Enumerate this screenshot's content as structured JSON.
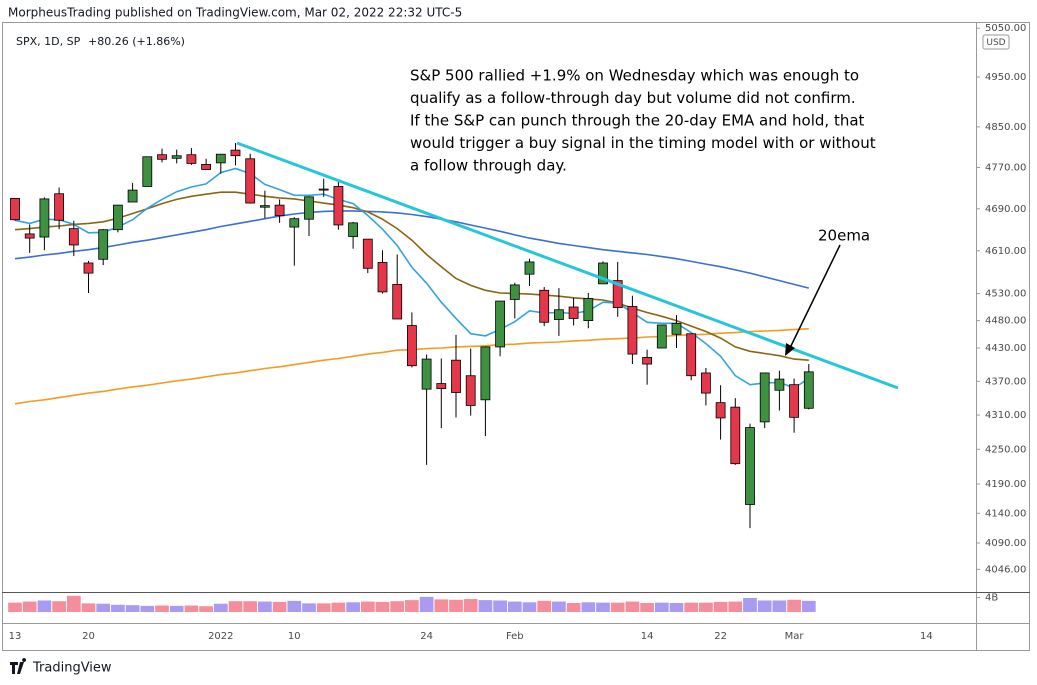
{
  "header": {
    "publisher": "MorpheusTrading published on TradingView.com, Mar 02, 2022 22:32 UTC-5",
    "symbol": "SPX, 1D, SP",
    "change": "+80.26 (+1.86%)"
  },
  "currency": "USD",
  "footer": "TradingView",
  "chart_data": {
    "type": "candlestick",
    "categories": [
      "13",
      null,
      null,
      null,
      null,
      "20",
      null,
      null,
      null,
      null,
      null,
      null,
      null,
      null,
      "2022",
      null,
      null,
      null,
      null,
      "10",
      null,
      null,
      null,
      null,
      null,
      null,
      null,
      null,
      "24",
      null,
      null,
      null,
      null,
      null,
      "Feb",
      null,
      null,
      null,
      null,
      null,
      null,
      null,
      null,
      "14",
      null,
      null,
      null,
      null,
      "22",
      null,
      null,
      null,
      null,
      "Mar",
      null,
      null,
      null,
      null,
      null,
      null,
      null,
      null,
      "14"
    ],
    "open": [
      4710,
      4642,
      4636,
      4719,
      4652,
      4587,
      4594,
      4650,
      4703,
      4733,
      4795,
      4788,
      4795,
      4776,
      4779,
      4804,
      4787,
      4693,
      4697,
      4655,
      4670,
      4728,
      4733,
      4637,
      4632,
      4588,
      4547,
      4471,
      4356,
      4366,
      4408,
      4380,
      4337,
      4432,
      4519,
      4566,
      4536,
      4482,
      4505,
      4480,
      4548,
      4554,
      4506,
      4413,
      4430,
      4455,
      4456,
      4385,
      4332,
      4324,
      4155,
      4298,
      4354,
      4364,
      4322,
      null,
      null,
      null,
      null,
      null,
      null,
      null,
      null
    ],
    "high": [
      4710,
      4660,
      4712,
      4731,
      4667,
      4591,
      4651,
      4697,
      4740,
      4791,
      4807,
      4805,
      4808,
      4787,
      4796,
      4818,
      4797,
      4725,
      4708,
      4674,
      4714,
      4748,
      4744,
      4665,
      4632,
      4611,
      4603,
      4495,
      4418,
      4411,
      4454,
      4429,
      4433,
      4516,
      4550,
      4595,
      4542,
      4540,
      4522,
      4531,
      4590,
      4589,
      4526,
      4427,
      4472,
      4490,
      4456,
      4394,
      4363,
      4340,
      4295,
      4385,
      4389,
      4375,
      4401,
      null,
      null,
      null,
      null,
      null,
      null,
      null,
      null
    ],
    "low": [
      4667,
      4606,
      4611,
      4651,
      4600,
      4531,
      4583,
      4645,
      4703,
      4733,
      4780,
      4778,
      4775,
      4766,
      4758,
      4774,
      4700,
      4672,
      4663,
      4582,
      4638,
      4713,
      4650,
      4614,
      4568,
      4530,
      4483,
      4395,
      4223,
      4287,
      4306,
      4309,
      4273,
      4415,
      4484,
      4544,
      4470,
      4452,
      4471,
      4466,
      4548,
      4487,
      4401,
      4364,
      4430,
      4430,
      4372,
      4327,
      4267,
      4223,
      4115,
      4287,
      4318,
      4279,
      4320,
      null,
      null,
      null,
      null,
      null,
      null,
      null,
      null
    ],
    "close": [
      4669,
      4634,
      4709,
      4668,
      4621,
      4568,
      4650,
      4697,
      4726,
      4791,
      4786,
      4793,
      4778,
      4766,
      4796,
      4793,
      4701,
      4696,
      4677,
      4671,
      4713,
      4726,
      4659,
      4663,
      4577,
      4533,
      4483,
      4398,
      4410,
      4357,
      4350,
      4327,
      4432,
      4516,
      4546,
      4589,
      4477,
      4500,
      4484,
      4521,
      4587,
      4504,
      4419,
      4401,
      4472,
      4475,
      4380,
      4349,
      4305,
      4225,
      4288,
      4385,
      4374,
      4306,
      4387,
      null,
      null,
      null,
      null,
      null,
      null,
      null,
      null
    ],
    "up_color": "#3f9142",
    "down_color": "#e5374a",
    "overlays": [
      {
        "color": "#f39c1f",
        "values": [
          4330,
          4334,
          4337,
          4341,
          4345,
          4349,
          4352,
          4356,
          4360,
          4363,
          4367,
          4371,
          4374,
          4378,
          4382,
          4385,
          4389,
          4393,
          4396,
          4400,
          4404,
          4408,
          4411,
          4415,
          4419,
          4422,
          4426,
          4427,
          4429,
          4430,
          4432,
          4433,
          4434,
          4436,
          4437,
          4439,
          4440,
          4441,
          4443,
          4444,
          4446,
          4447,
          4448,
          4450,
          4451,
          4453,
          4454,
          4455,
          4457,
          4458,
          4460,
          4461,
          4462,
          4464,
          4465,
          null,
          null,
          null,
          null,
          null,
          null,
          null,
          null
        ]
      },
      {
        "color": "#3b6fd0",
        "values": [
          4595,
          4598,
          4602,
          4605,
          4609,
          4612,
          4616,
          4621,
          4626,
          4630,
          4635,
          4640,
          4645,
          4650,
          4656,
          4661,
          4666,
          4671,
          4676,
          4680,
          4683,
          4685,
          4686,
          4686,
          4685,
          4684,
          4682,
          4679,
          4675,
          4670,
          4665,
          4659,
          4653,
          4647,
          4640,
          4634,
          4629,
          4624,
          4620,
          4616,
          4612,
          4609,
          4606,
          4603,
          4599,
          4595,
          4590,
          4585,
          4580,
          4574,
          4568,
          4561,
          4554,
          4547,
          4540,
          null,
          null,
          null,
          null,
          null,
          null,
          null,
          null
        ]
      },
      {
        "color": "#8b6514",
        "values": [
          4650,
          4652,
          4655,
          4657,
          4660,
          4662,
          4665,
          4672,
          4681,
          4690,
          4700,
          4708,
          4714,
          4718,
          4722,
          4722,
          4718,
          4714,
          4711,
          4709,
          4705,
          4701,
          4697,
          4692,
          4684,
          4670,
          4652,
          4630,
          4603,
          4580,
          4558,
          4545,
          4536,
          4531,
          4530,
          4529,
          4527,
          4525,
          4522,
          4520,
          4518,
          4512,
          4503,
          4495,
          4488,
          4480,
          4470,
          4460,
          4448,
          4432,
          4424,
          4420,
          4416,
          4410,
          4408,
          null,
          null,
          null,
          null,
          null,
          null,
          null,
          null
        ]
      },
      {
        "color": "#33a3e0",
        "values": [
          4668,
          4662,
          4670,
          4669,
          4660,
          4644,
          4645,
          4655,
          4669,
          4691,
          4708,
          4723,
          4732,
          4738,
          4760,
          4768,
          4758,
          4737,
          4727,
          4716,
          4716,
          4718,
          4708,
          4700,
          4677,
          4651,
          4620,
          4579,
          4549,
          4514,
          4484,
          4456,
          4452,
          4464,
          4478,
          4498,
          4494,
          4495,
          4493,
          4498,
          4514,
          4512,
          4495,
          4477,
          4475,
          4475,
          4458,
          4438,
          4415,
          4380,
          4364,
          4367,
          4368,
          4358,
          4375,
          null,
          null,
          null,
          null,
          null,
          null,
          null,
          null
        ]
      }
    ],
    "ylim": [
      4012,
      5067
    ],
    "log_scale": true,
    "grid": false,
    "yticks": [
      {
        "value": 5050,
        "label": "5050.00"
      },
      {
        "value": 4950,
        "label": "4950.00"
      },
      {
        "value": 4850,
        "label": "4850.00"
      },
      {
        "value": 4770,
        "label": "4770.00"
      },
      {
        "value": 4690,
        "label": "4690.00"
      },
      {
        "value": 4610,
        "label": "4610.00"
      },
      {
        "value": 4530,
        "label": "4530.00"
      },
      {
        "value": 4480,
        "label": "4480.00"
      },
      {
        "value": 4430,
        "label": "4430.00"
      },
      {
        "value": 4370,
        "label": "4370.00"
      },
      {
        "value": 4310,
        "label": "4310.00"
      },
      {
        "value": 4250,
        "label": "4250.00"
      },
      {
        "value": 4190,
        "label": "4190.00"
      },
      {
        "value": 4140,
        "label": "4140.00"
      },
      {
        "value": 4090,
        "label": "4090.00"
      },
      {
        "value": 4046,
        "label": "4046.00"
      }
    ],
    "volume": {
      "values": [
        2.6,
        2.9,
        3.2,
        3.0,
        4.5,
        2.4,
        2.3,
        2.0,
        1.9,
        1.7,
        1.8,
        1.7,
        1.8,
        1.6,
        2.3,
        3.0,
        3.0,
        2.9,
        2.8,
        3.1,
        2.4,
        2.4,
        2.6,
        2.7,
        2.9,
        2.8,
        3.0,
        3.3,
        4.2,
        3.5,
        3.4,
        3.6,
        3.3,
        3.2,
        2.9,
        2.7,
        3.1,
        2.9,
        2.5,
        2.7,
        2.6,
        2.6,
        2.9,
        2.5,
        2.6,
        2.5,
        2.6,
        2.6,
        2.8,
        2.9,
        3.9,
        3.2,
        3.2,
        3.4,
        3.1,
        null,
        null,
        null,
        null,
        null,
        null,
        null,
        null
      ],
      "up_color": "#a99af2",
      "down_color": "#f58d9b",
      "ylim": [
        0,
        5
      ],
      "yticks": [
        {
          "value": 4,
          "label": "4B"
        }
      ]
    },
    "annotations": [
      "S&P 500 rallied +1.9% on Wednesday which was enough to",
      "qualify as a follow-through day but volume did not confirm.",
      "If the S&P can punch through the 20-day EMA and hold, that",
      "would trigger a buy signal in the timing model with or without",
      "a follow through day."
    ],
    "callout": "20ema"
  }
}
